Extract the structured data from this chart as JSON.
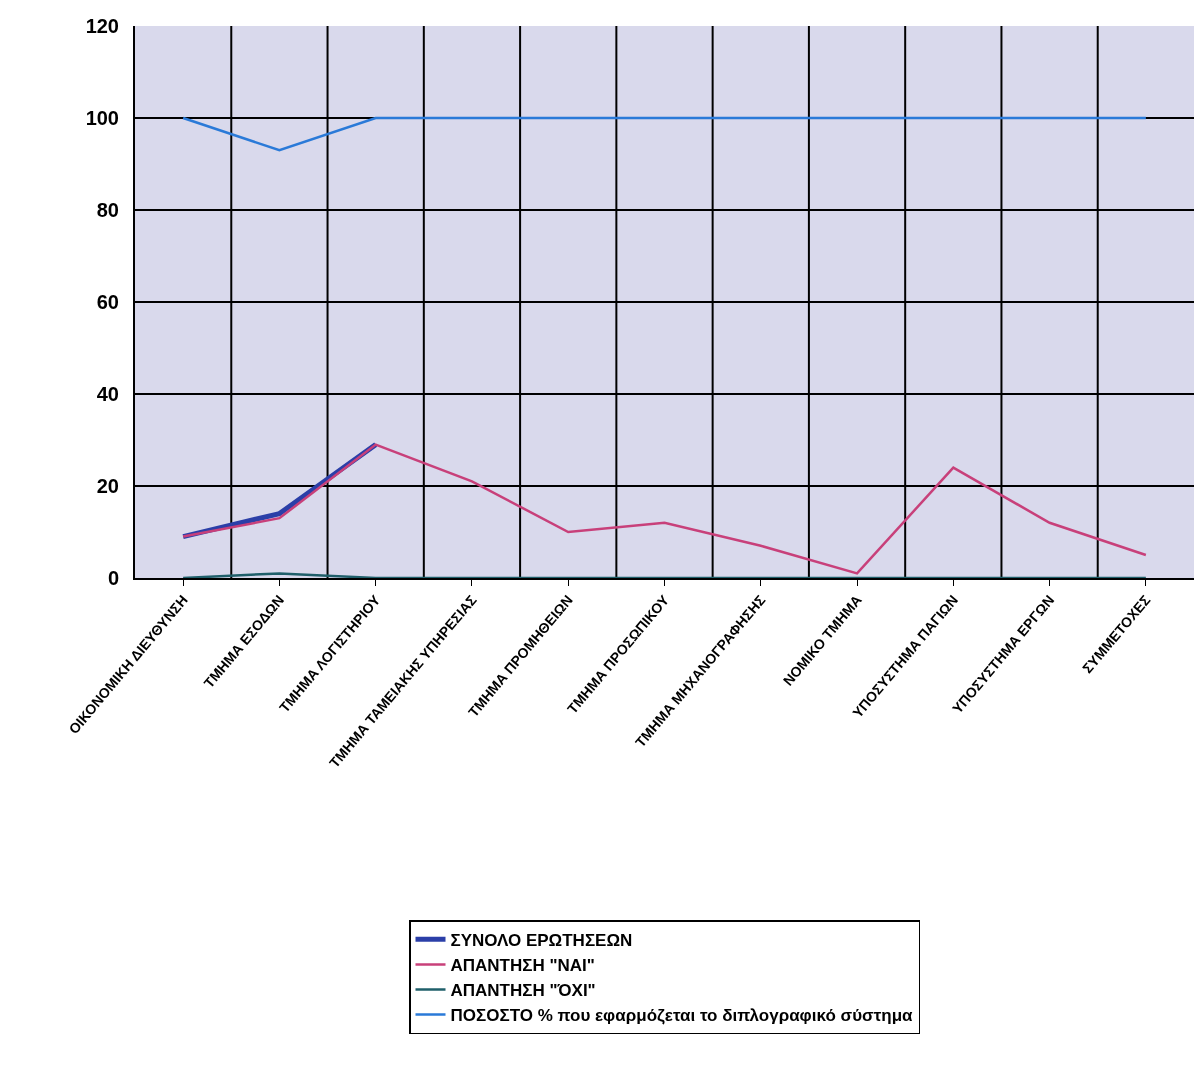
{
  "chart_data": {
    "type": "line",
    "categories": [
      "ΟΙΚΟΝΟΜΙΚΗ ΔΙΕΥΘΥΝΣΗ",
      "ΤΜΗΜΑ ΕΣΟΔΩΝ",
      "ΤΜΗΜΑ ΛΟΓΙΣΤΗΡΙΟΥ",
      "ΤΜΗΜΑ ΤΑΜΕΙΑΚΗΣ ΥΠΗΡΕΣΙΑΣ",
      "ΤΜΗΜΑ ΠΡΟΜΗΘΕΙΩΝ",
      "ΤΜΗΜΑ ΠΡΟΣΩΠΙΚΟΥ",
      "ΤΜΗΜΑ ΜΗΧΑΝΟΓΡΑΦΗΣΗΣ",
      "ΝΟΜΙΚΟ ΤΜΗΜΑ",
      "ΥΠΟΣΥΣΤΗΜΑ ΠΑΓΙΩΝ",
      "ΥΠΟΣΥΣΤΗΜΑ ΕΡΓΩΝ",
      "ΣΥΜΜΕΤΟΧΕΣ"
    ],
    "series": [
      {
        "name": "ΣΥΝΟΛΟ ΕΡΩΤΗΣΕΩΝ",
        "color": "#2b3fa8",
        "values": [
          9,
          14,
          29,
          null,
          null,
          null,
          null,
          null,
          null,
          null,
          null
        ]
      },
      {
        "name": "ΑΠΑΝΤΗΣΗ \"ΝΑΙ\"",
        "color": "#c8407a",
        "values": [
          9,
          13,
          29,
          21,
          10,
          12,
          7,
          1,
          24,
          12,
          5
        ]
      },
      {
        "name": "ΑΠΑΝΤΗΣΗ \"ΌΧΙ\"",
        "color": "#1f5f6a",
        "values": [
          0,
          1,
          0,
          0,
          0,
          0,
          0,
          0,
          0,
          0,
          0
        ]
      },
      {
        "name": "ΠΟΣΟΣΤΟ % που εφαρμόζεται το διπλογραφικό σύστημα",
        "color": "#2a7ad8",
        "values": [
          100,
          93,
          100,
          100,
          100,
          100,
          100,
          100,
          100,
          100,
          100
        ]
      }
    ],
    "ylim": [
      0,
      120
    ],
    "yticks": [
      0,
      20,
      40,
      60,
      80,
      100,
      120
    ],
    "grid": true,
    "legend": "bottom",
    "marker": "none",
    "line_style": "solid"
  }
}
